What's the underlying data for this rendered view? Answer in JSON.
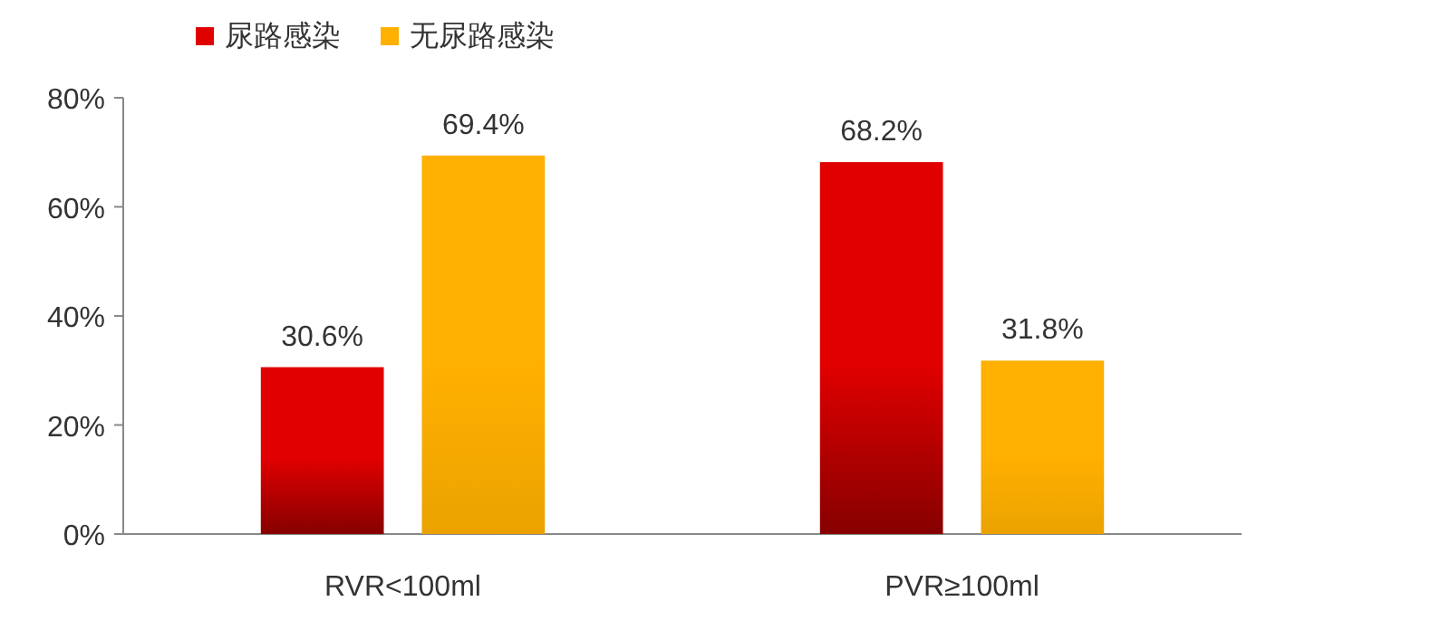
{
  "chart_data": {
    "type": "bar",
    "categories": [
      "RVR<100ml",
      "PVR≥100ml"
    ],
    "series": [
      {
        "name": "尿路感染",
        "color": "#e00000",
        "values": [
          30.6,
          68.2
        ],
        "value_labels": [
          "30.6%",
          "68.2%"
        ]
      },
      {
        "name": "无尿路感染",
        "color": "#ffb000",
        "values": [
          69.4,
          31.8
        ],
        "value_labels": [
          "69.4%",
          "31.8%"
        ]
      }
    ],
    "ylim": [
      0,
      80
    ],
    "yticks": [
      {
        "value": 0,
        "label": "0%"
      },
      {
        "value": 20,
        "label": "20%"
      },
      {
        "value": 40,
        "label": "40%"
      },
      {
        "value": 60,
        "label": "60%"
      },
      {
        "value": 80,
        "label": "80%"
      }
    ],
    "legend": "top left",
    "grid": false
  }
}
